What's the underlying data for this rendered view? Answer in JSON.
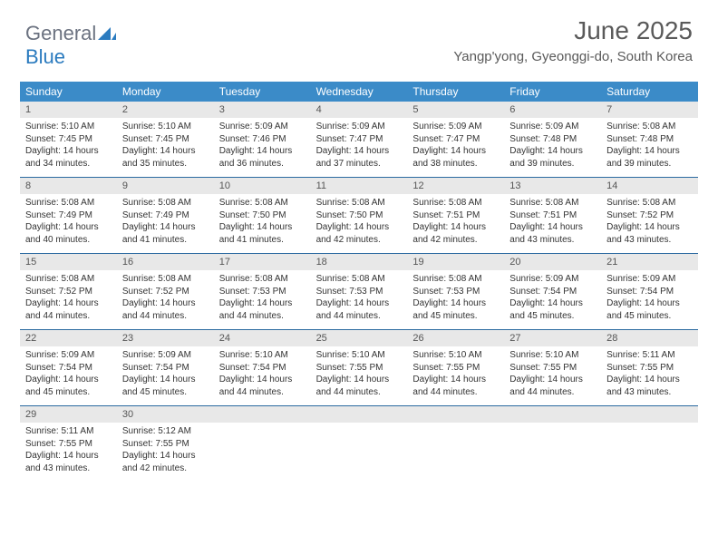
{
  "logo": {
    "text1": "General",
    "text2": "Blue"
  },
  "title": "June 2025",
  "subtitle": "Yangp'yong, Gyeonggi-do, South Korea",
  "colors": {
    "header_bg": "#3b8bc8",
    "header_text": "#ffffff",
    "daynum_bg": "#e8e8e8",
    "week_border": "#2b6aa0",
    "title_color": "#5a5a5a",
    "logo_gray": "#6b7280",
    "logo_blue": "#2b7bbf"
  },
  "day_headers": [
    "Sunday",
    "Monday",
    "Tuesday",
    "Wednesday",
    "Thursday",
    "Friday",
    "Saturday"
  ],
  "weeks": [
    [
      {
        "n": "1",
        "sr": "5:10 AM",
        "ss": "7:45 PM",
        "dl": "14 hours and 34 minutes."
      },
      {
        "n": "2",
        "sr": "5:10 AM",
        "ss": "7:45 PM",
        "dl": "14 hours and 35 minutes."
      },
      {
        "n": "3",
        "sr": "5:09 AM",
        "ss": "7:46 PM",
        "dl": "14 hours and 36 minutes."
      },
      {
        "n": "4",
        "sr": "5:09 AM",
        "ss": "7:47 PM",
        "dl": "14 hours and 37 minutes."
      },
      {
        "n": "5",
        "sr": "5:09 AM",
        "ss": "7:47 PM",
        "dl": "14 hours and 38 minutes."
      },
      {
        "n": "6",
        "sr": "5:09 AM",
        "ss": "7:48 PM",
        "dl": "14 hours and 39 minutes."
      },
      {
        "n": "7",
        "sr": "5:08 AM",
        "ss": "7:48 PM",
        "dl": "14 hours and 39 minutes."
      }
    ],
    [
      {
        "n": "8",
        "sr": "5:08 AM",
        "ss": "7:49 PM",
        "dl": "14 hours and 40 minutes."
      },
      {
        "n": "9",
        "sr": "5:08 AM",
        "ss": "7:49 PM",
        "dl": "14 hours and 41 minutes."
      },
      {
        "n": "10",
        "sr": "5:08 AM",
        "ss": "7:50 PM",
        "dl": "14 hours and 41 minutes."
      },
      {
        "n": "11",
        "sr": "5:08 AM",
        "ss": "7:50 PM",
        "dl": "14 hours and 42 minutes."
      },
      {
        "n": "12",
        "sr": "5:08 AM",
        "ss": "7:51 PM",
        "dl": "14 hours and 42 minutes."
      },
      {
        "n": "13",
        "sr": "5:08 AM",
        "ss": "7:51 PM",
        "dl": "14 hours and 43 minutes."
      },
      {
        "n": "14",
        "sr": "5:08 AM",
        "ss": "7:52 PM",
        "dl": "14 hours and 43 minutes."
      }
    ],
    [
      {
        "n": "15",
        "sr": "5:08 AM",
        "ss": "7:52 PM",
        "dl": "14 hours and 44 minutes."
      },
      {
        "n": "16",
        "sr": "5:08 AM",
        "ss": "7:52 PM",
        "dl": "14 hours and 44 minutes."
      },
      {
        "n": "17",
        "sr": "5:08 AM",
        "ss": "7:53 PM",
        "dl": "14 hours and 44 minutes."
      },
      {
        "n": "18",
        "sr": "5:08 AM",
        "ss": "7:53 PM",
        "dl": "14 hours and 44 minutes."
      },
      {
        "n": "19",
        "sr": "5:08 AM",
        "ss": "7:53 PM",
        "dl": "14 hours and 45 minutes."
      },
      {
        "n": "20",
        "sr": "5:09 AM",
        "ss": "7:54 PM",
        "dl": "14 hours and 45 minutes."
      },
      {
        "n": "21",
        "sr": "5:09 AM",
        "ss": "7:54 PM",
        "dl": "14 hours and 45 minutes."
      }
    ],
    [
      {
        "n": "22",
        "sr": "5:09 AM",
        "ss": "7:54 PM",
        "dl": "14 hours and 45 minutes."
      },
      {
        "n": "23",
        "sr": "5:09 AM",
        "ss": "7:54 PM",
        "dl": "14 hours and 45 minutes."
      },
      {
        "n": "24",
        "sr": "5:10 AM",
        "ss": "7:54 PM",
        "dl": "14 hours and 44 minutes."
      },
      {
        "n": "25",
        "sr": "5:10 AM",
        "ss": "7:55 PM",
        "dl": "14 hours and 44 minutes."
      },
      {
        "n": "26",
        "sr": "5:10 AM",
        "ss": "7:55 PM",
        "dl": "14 hours and 44 minutes."
      },
      {
        "n": "27",
        "sr": "5:10 AM",
        "ss": "7:55 PM",
        "dl": "14 hours and 44 minutes."
      },
      {
        "n": "28",
        "sr": "5:11 AM",
        "ss": "7:55 PM",
        "dl": "14 hours and 43 minutes."
      }
    ],
    [
      {
        "n": "29",
        "sr": "5:11 AM",
        "ss": "7:55 PM",
        "dl": "14 hours and 43 minutes."
      },
      {
        "n": "30",
        "sr": "5:12 AM",
        "ss": "7:55 PM",
        "dl": "14 hours and 42 minutes."
      },
      null,
      null,
      null,
      null,
      null
    ]
  ],
  "labels": {
    "sunrise": "Sunrise:",
    "sunset": "Sunset:",
    "daylight": "Daylight:"
  }
}
